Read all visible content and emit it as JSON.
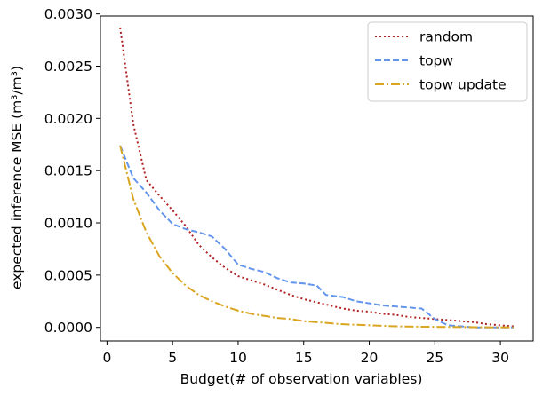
{
  "chart_data": {
    "type": "line",
    "xlabel": "Budget(# of observation variables)",
    "ylabel": "expected inference MSE (m³/m³)",
    "xlim": [
      -0.5,
      32.5
    ],
    "ylim": [
      -0.00013,
      0.00298
    ],
    "xticks": [
      0,
      5,
      10,
      15,
      20,
      25,
      30
    ],
    "xtick_labels": [
      "0",
      "5",
      "10",
      "15",
      "20",
      "25",
      "30"
    ],
    "yticks": [
      0.0,
      0.0005,
      0.001,
      0.0015,
      0.002,
      0.0025,
      0.003
    ],
    "ytick_labels": [
      "0.0000",
      "0.0005",
      "0.0010",
      "0.0015",
      "0.0020",
      "0.0025",
      "0.0030"
    ],
    "grid": false,
    "legend_position": "top-right",
    "legend": [
      "random",
      "topw",
      "topw update"
    ],
    "series": [
      {
        "name": "random",
        "color": "#b22222",
        "dash": "dotted",
        "x": [
          1,
          2,
          3,
          4,
          5,
          6,
          7,
          8,
          9,
          10,
          11,
          12,
          13,
          14,
          15,
          16,
          17,
          18,
          19,
          20,
          21,
          22,
          23,
          24,
          25,
          26,
          27,
          28,
          29,
          30,
          31
        ],
        "y": [
          0.00287,
          0.00195,
          0.00141,
          0.00126,
          0.00112,
          0.00097,
          0.00079,
          0.00067,
          0.00057,
          0.00049,
          0.00045,
          0.00041,
          0.00036,
          0.00031,
          0.00027,
          0.00024,
          0.00021,
          0.00018,
          0.00016,
          0.00015,
          0.00013,
          0.00012,
          0.0001,
          9e-05,
          8e-05,
          7e-05,
          6e-05,
          5e-05,
          3e-05,
          2e-05,
          1e-05
        ]
      },
      {
        "name": "topw",
        "color": "#6495ed",
        "dash": "dashed",
        "x": [
          1,
          2,
          3,
          4,
          5,
          6,
          7,
          8,
          9,
          10,
          11,
          12,
          13,
          14,
          15,
          16,
          16.7,
          18,
          19,
          20,
          21,
          22,
          23,
          24,
          25,
          26,
          27,
          28,
          29,
          30,
          31
        ],
        "y": [
          0.00174,
          0.00143,
          0.00129,
          0.00112,
          0.00099,
          0.00094,
          0.00091,
          0.00087,
          0.00075,
          0.0006,
          0.00056,
          0.00053,
          0.00047,
          0.00043,
          0.00042,
          0.0004,
          0.00031,
          0.00029,
          0.00025,
          0.00023,
          0.00021,
          0.0002,
          0.00019,
          0.00018,
          8e-05,
          2e-05,
          1e-05,
          0.0,
          0.0,
          0.0,
          0.0
        ]
      },
      {
        "name": "topw update",
        "color": "#daa520",
        "dash": "dashdot",
        "x": [
          1,
          2,
          3,
          4,
          5,
          6,
          7,
          8,
          9,
          10,
          11,
          12,
          13,
          14,
          15,
          16,
          17,
          18,
          19,
          20,
          21,
          22,
          23,
          24,
          25,
          26,
          27,
          28,
          29,
          30,
          31
        ],
        "y": [
          0.00174,
          0.00123,
          0.00091,
          0.00068,
          0.00052,
          0.0004,
          0.00031,
          0.00025,
          0.0002,
          0.00016,
          0.00013,
          0.00011,
          9e-05,
          8e-05,
          6e-05,
          5e-05,
          4e-05,
          3e-05,
          2.5e-05,
          2e-05,
          1.5e-05,
          1e-05,
          8e-06,
          6e-06,
          5e-06,
          4e-06,
          3e-06,
          2e-06,
          1e-06,
          1e-06,
          0.0
        ]
      }
    ]
  }
}
